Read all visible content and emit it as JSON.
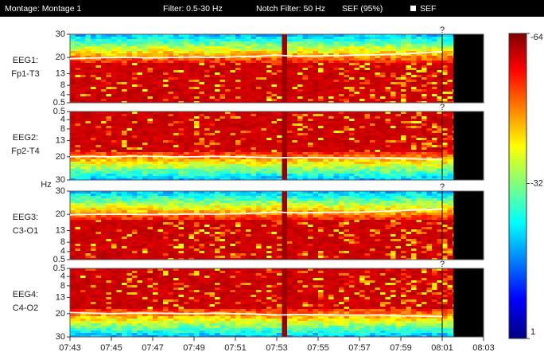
{
  "header": {
    "montage": "Montage: Montage 1",
    "filter": "Filter: 0.5-30 Hz",
    "notch": "Notch Filter: 50 Hz",
    "sef_pct": "SEF (95%)",
    "sef_legend": "SEF"
  },
  "y_axis_label": "Hz",
  "cursor_marker": "?",
  "xlim": [
    "07:43",
    "08:03"
  ],
  "xticks": [
    "07:43",
    "07:45",
    "07:47",
    "07:49",
    "07:51",
    "07:53",
    "07:55",
    "07:57",
    "07:59",
    "08:01",
    "08:03"
  ],
  "sef_x": [
    "07:43",
    "07:44",
    "07:45",
    "07:46",
    "07:47",
    "07:48",
    "07:49",
    "07:50",
    "07:51",
    "07:52",
    "07:53",
    "07:54",
    "07:55",
    "07:56",
    "07:57",
    "07:58",
    "07:59",
    "08:00",
    "08:01"
  ],
  "panels": [
    {
      "label": "EEG1:",
      "channel": "Fp1-T3",
      "ylim": [
        0.5,
        30
      ],
      "yticks": [
        30,
        20,
        13,
        8,
        4,
        0.5
      ],
      "sef": [
        19.5,
        19.8,
        20,
        20,
        19.8,
        20,
        20.2,
        20,
        20.3,
        20.5,
        21,
        20.5,
        20.7,
        20.8,
        21,
        21.2,
        21.5,
        22,
        22.5
      ]
    },
    {
      "label": "EEG2:",
      "channel": "Fp2-T4",
      "ylim": [
        30,
        0.5
      ],
      "yticks": [
        0.5,
        4,
        8,
        13,
        20,
        30
      ],
      "sef": [
        20,
        19.8,
        20,
        19.7,
        19.8,
        20,
        20,
        19.8,
        20,
        20.2,
        20.5,
        20.3,
        20.4,
        20.5,
        20.6,
        20.5,
        20.8,
        21,
        21
      ]
    },
    {
      "label": "EEG3:",
      "channel": "C3-O1",
      "ylim": [
        0.5,
        30
      ],
      "yticks": [
        30,
        20,
        13,
        8,
        4,
        0.5
      ],
      "sef": [
        19.8,
        20,
        20,
        20,
        19.9,
        20,
        20.2,
        20.1,
        20.3,
        20.5,
        21,
        20.6,
        20.8,
        20.9,
        21,
        21.3,
        21.6,
        22,
        22.3
      ]
    },
    {
      "label": "EEG4:",
      "channel": "C4-O2",
      "ylim": [
        30,
        0.5
      ],
      "yticks": [
        0.5,
        4,
        8,
        13,
        20,
        30
      ],
      "sef": [
        19.5,
        19.8,
        20,
        19.8,
        19.8,
        19.9,
        20,
        19.8,
        20,
        20.2,
        20.6,
        20.4,
        20.5,
        20.6,
        20.7,
        20.6,
        20.9,
        21,
        21.2
      ]
    }
  ],
  "colorbar": {
    "lim": [
      1,
      -64
    ],
    "ticks": [
      -64,
      -32,
      1
    ]
  }
}
